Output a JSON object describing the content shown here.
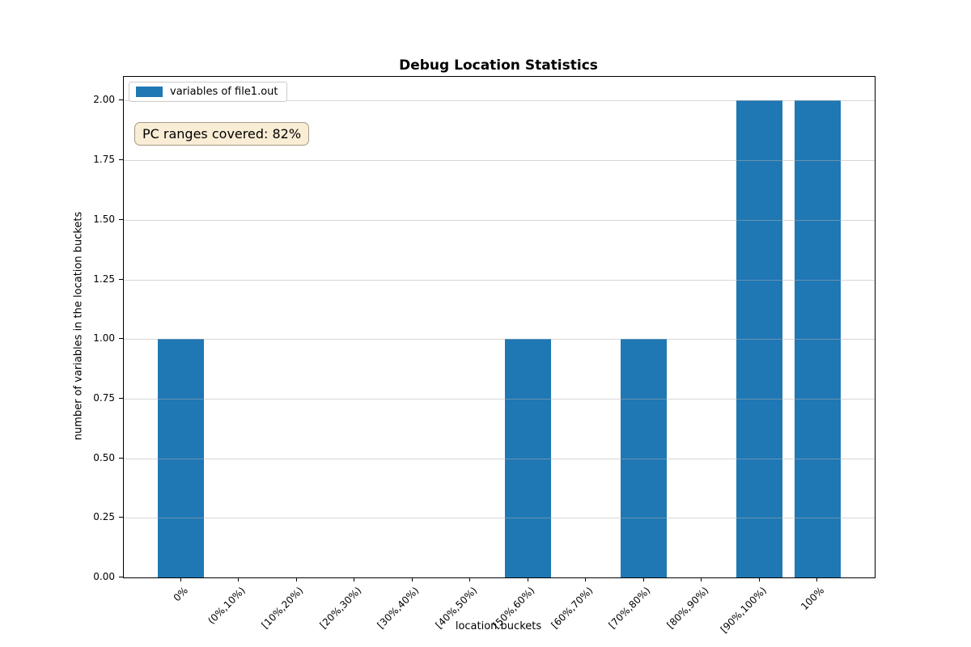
{
  "figure": {
    "title": "Debug Location Statistics"
  },
  "legend": {
    "label": "variables of file1.out",
    "swatch_color": "#1f77b4"
  },
  "annotation": {
    "text": "PC ranges covered: 82%",
    "facecolor": "#f5deb3"
  },
  "chart_data": {
    "type": "bar",
    "title": "Debug Location Statistics",
    "categories": [
      "0%",
      "(0%,10%)",
      "[10%,20%)",
      "[20%,30%)",
      "[30%,40%)",
      "[40%,50%)",
      "[50%,60%)",
      "[60%,70%)",
      "[70%,80%)",
      "[80%,90%)",
      "[90%,100%)",
      "100%"
    ],
    "series": [
      {
        "name": "variables of file1.out",
        "values": [
          1,
          0,
          0,
          0,
          0,
          0,
          1,
          0,
          1,
          0,
          2,
          2
        ]
      }
    ],
    "xlabel": "location buckets",
    "ylabel": "number of variables in the location buckets",
    "ylim": [
      0,
      2.1
    ],
    "yticks": [
      0,
      0.25,
      0.5,
      0.75,
      1.0,
      1.25,
      1.5,
      1.75,
      2.0
    ],
    "ytick_labels": [
      "0.00",
      "0.25",
      "0.50",
      "0.75",
      "1.00",
      "1.25",
      "1.50",
      "1.75",
      "2.00"
    ],
    "bar_color": "#1f77b4",
    "bar_width_fraction": 0.8,
    "grid": "horizontal",
    "grid_color": "#b0b0b0",
    "legend_position": "upper-left",
    "annotation_text": "PC ranges covered: 82%"
  }
}
